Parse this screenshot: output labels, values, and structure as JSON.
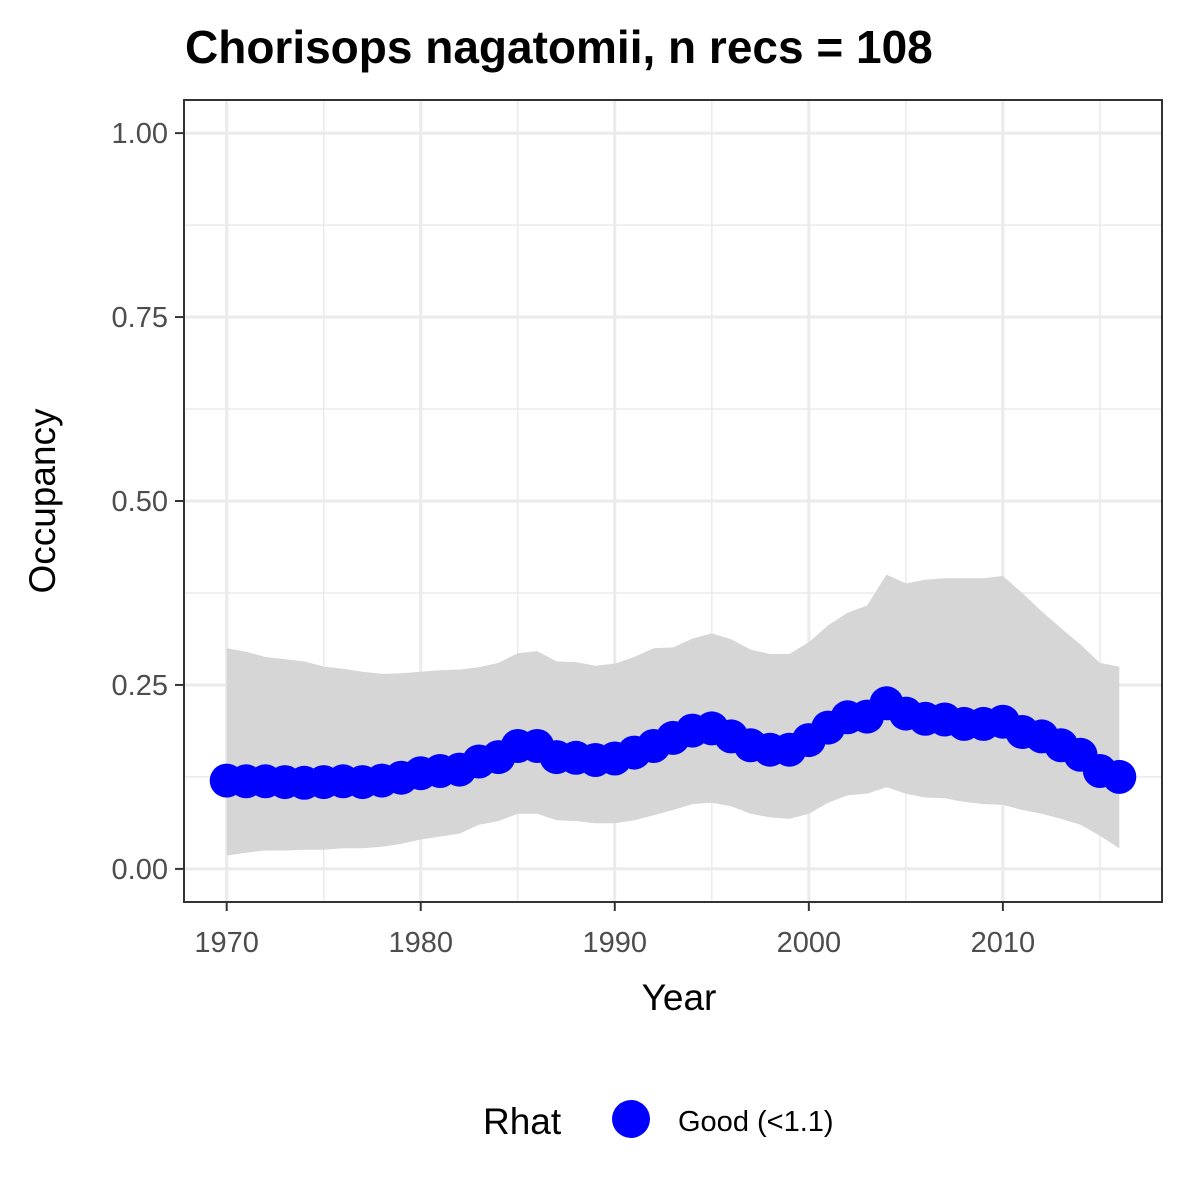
{
  "chart_data": {
    "type": "line",
    "title": "Chorisops nagatomii, n recs = 108",
    "xlabel": "Year",
    "ylabel": "Occupancy",
    "xlim": [
      1967.8,
      2018.2
    ],
    "ylim": [
      -0.045,
      1.045
    ],
    "x_ticks": [
      1970,
      1980,
      1990,
      2000,
      2010
    ],
    "x_tick_labels": [
      "1970",
      "1980",
      "1990",
      "2000",
      "2010"
    ],
    "y_ticks": [
      0,
      0.25,
      0.5,
      0.75,
      1
    ],
    "y_tick_labels": [
      "0.00",
      "0.25",
      "0.50",
      "0.75",
      "1.00"
    ],
    "grid": true,
    "legend": {
      "title": "Rhat",
      "position": "bottom",
      "entries": [
        {
          "label": "Good (<1.1)",
          "color": "#0000ff"
        }
      ]
    },
    "series": [
      {
        "name": "Good (<1.1)",
        "color": "#0000ff",
        "band_color": "#d6d6d6",
        "x": [
          1970,
          1971,
          1972,
          1973,
          1974,
          1975,
          1976,
          1977,
          1978,
          1979,
          1980,
          1981,
          1982,
          1983,
          1984,
          1985,
          1986,
          1987,
          1988,
          1989,
          1990,
          1991,
          1992,
          1993,
          1994,
          1995,
          1996,
          1997,
          1998,
          1999,
          2000,
          2001,
          2002,
          2003,
          2004,
          2005,
          2006,
          2007,
          2008,
          2009,
          2010,
          2011,
          2012,
          2013,
          2014,
          2015,
          2016
        ],
        "values": [
          0.12,
          0.119,
          0.119,
          0.118,
          0.117,
          0.118,
          0.119,
          0.118,
          0.12,
          0.124,
          0.13,
          0.133,
          0.135,
          0.146,
          0.152,
          0.167,
          0.167,
          0.152,
          0.151,
          0.148,
          0.15,
          0.158,
          0.167,
          0.178,
          0.188,
          0.191,
          0.18,
          0.168,
          0.162,
          0.162,
          0.175,
          0.192,
          0.206,
          0.207,
          0.225,
          0.211,
          0.204,
          0.203,
          0.197,
          0.197,
          0.2,
          0.186,
          0.18,
          0.168,
          0.155,
          0.133,
          0.125
        ],
        "upper": [
          0.3,
          0.295,
          0.288,
          0.285,
          0.282,
          0.275,
          0.272,
          0.268,
          0.265,
          0.266,
          0.268,
          0.27,
          0.271,
          0.274,
          0.28,
          0.293,
          0.296,
          0.282,
          0.281,
          0.276,
          0.279,
          0.288,
          0.3,
          0.301,
          0.313,
          0.32,
          0.312,
          0.298,
          0.292,
          0.292,
          0.308,
          0.331,
          0.348,
          0.358,
          0.4,
          0.388,
          0.393,
          0.395,
          0.395,
          0.395,
          0.398,
          0.375,
          0.35,
          0.327,
          0.305,
          0.28,
          0.275
        ],
        "lower": [
          0.018,
          0.022,
          0.025,
          0.025,
          0.026,
          0.026,
          0.028,
          0.028,
          0.03,
          0.034,
          0.04,
          0.044,
          0.048,
          0.06,
          0.065,
          0.075,
          0.075,
          0.066,
          0.065,
          0.062,
          0.062,
          0.066,
          0.073,
          0.08,
          0.088,
          0.09,
          0.085,
          0.075,
          0.07,
          0.068,
          0.075,
          0.09,
          0.1,
          0.102,
          0.111,
          0.102,
          0.097,
          0.096,
          0.091,
          0.088,
          0.087,
          0.08,
          0.075,
          0.068,
          0.06,
          0.045,
          0.028
        ]
      }
    ]
  }
}
